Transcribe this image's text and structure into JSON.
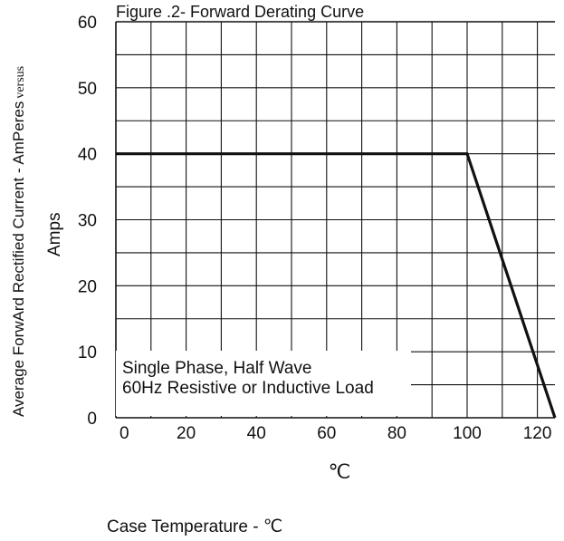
{
  "chart_data": {
    "type": "line",
    "title": "Figure .2- Forward Derating Curve",
    "ylabel_line1": "Average ForwArd Rectified Current  -  AmPeres",
    "ylabel_suffix": "versus",
    "ylabel_line2": "Amps",
    "xlabel_unit": "℃",
    "xlabel": "Case Temperature  -  ℃",
    "annotation_line1": "Single Phase, Half Wave",
    "annotation_line2": "60Hz Resistive or Inductive Load",
    "xlim": [
      0,
      125
    ],
    "ylim": [
      0,
      60
    ],
    "x_ticks": [
      0,
      20,
      40,
      60,
      80,
      100,
      120
    ],
    "y_ticks": [
      0,
      10,
      20,
      30,
      40,
      50,
      60
    ],
    "grid": true,
    "series": [
      {
        "x": [
          0,
          100,
          125
        ],
        "y": [
          40,
          40,
          0
        ]
      }
    ],
    "colors": {
      "line": "#111111",
      "grid": "#111111"
    }
  }
}
